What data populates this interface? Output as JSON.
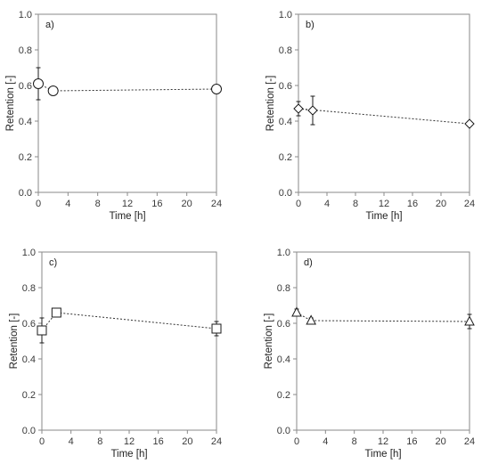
{
  "chart_data": [
    {
      "type": "scatter",
      "panel_label": "a)",
      "xlabel": "Time [h]",
      "ylabel": "Retention [-]",
      "xlim": [
        0,
        24
      ],
      "ylim": [
        0,
        1.0
      ],
      "xticks": [
        "0",
        "4",
        "8",
        "12",
        "16",
        "20",
        "24"
      ],
      "yticks": [
        "0.0",
        "0.2",
        "0.4",
        "0.6",
        "0.8",
        "1.0"
      ],
      "marker": "circle",
      "x": [
        0,
        2,
        24
      ],
      "y": [
        0.61,
        0.57,
        0.58
      ],
      "error": [
        0.09,
        0.02,
        0.02
      ],
      "trendline": [
        [
          2,
          0.57
        ],
        [
          24,
          0.58
        ]
      ],
      "connector": [
        [
          0,
          0.61
        ],
        [
          2,
          0.57
        ]
      ],
      "grid": false
    },
    {
      "type": "scatter",
      "panel_label": "b)",
      "xlabel": "Time [h]",
      "ylabel": "Retention [-]",
      "xlim": [
        0,
        24
      ],
      "ylim": [
        0,
        1.0
      ],
      "xticks": [
        "0",
        "4",
        "8",
        "12",
        "16",
        "20",
        "24"
      ],
      "yticks": [
        "0.0",
        "0.2",
        "0.4",
        "0.6",
        "0.8",
        "1.0"
      ],
      "marker": "diamond",
      "x": [
        0,
        2,
        24
      ],
      "y": [
        0.47,
        0.46,
        0.385
      ],
      "error": [
        0.04,
        0.08,
        0.01
      ],
      "trendline": [
        [
          0,
          0.47
        ],
        [
          24,
          0.385
        ]
      ],
      "connector": [
        [
          0,
          0.47
        ],
        [
          2,
          0.46
        ]
      ],
      "grid": false
    },
    {
      "type": "scatter",
      "panel_label": "c)",
      "xlabel": "Time [h]",
      "ylabel": "Retention [-]",
      "xlim": [
        0,
        24
      ],
      "ylim": [
        0,
        1.0
      ],
      "xticks": [
        "0",
        "4",
        "8",
        "12",
        "16",
        "20",
        "24"
      ],
      "yticks": [
        "0.0",
        "0.2",
        "0.4",
        "0.6",
        "0.8",
        "1.0"
      ],
      "marker": "square",
      "x": [
        0,
        2,
        24
      ],
      "y": [
        0.56,
        0.66,
        0.57
      ],
      "error": [
        0.07,
        0.02,
        0.04
      ],
      "trendline": [
        [
          2,
          0.66
        ],
        [
          24,
          0.57
        ]
      ],
      "connector": [
        [
          0,
          0.56
        ],
        [
          2,
          0.66
        ]
      ],
      "grid": false
    },
    {
      "type": "scatter",
      "panel_label": "d)",
      "xlabel": "Time [h]",
      "ylabel": "Retention [-]",
      "xlim": [
        0,
        24
      ],
      "ylim": [
        0,
        1.0
      ],
      "xticks": [
        "0",
        "4",
        "8",
        "12",
        "16",
        "20",
        "24"
      ],
      "yticks": [
        "0.0",
        "0.2",
        "0.4",
        "0.6",
        "0.8",
        "1.0"
      ],
      "marker": "triangle",
      "x": [
        0,
        2,
        24
      ],
      "y": [
        0.66,
        0.615,
        0.61
      ],
      "error": [
        0.02,
        0.015,
        0.04
      ],
      "trendline": [
        [
          2,
          0.615
        ],
        [
          24,
          0.61
        ]
      ],
      "connector": [
        [
          0,
          0.66
        ],
        [
          2,
          0.615
        ]
      ],
      "grid": false
    }
  ]
}
